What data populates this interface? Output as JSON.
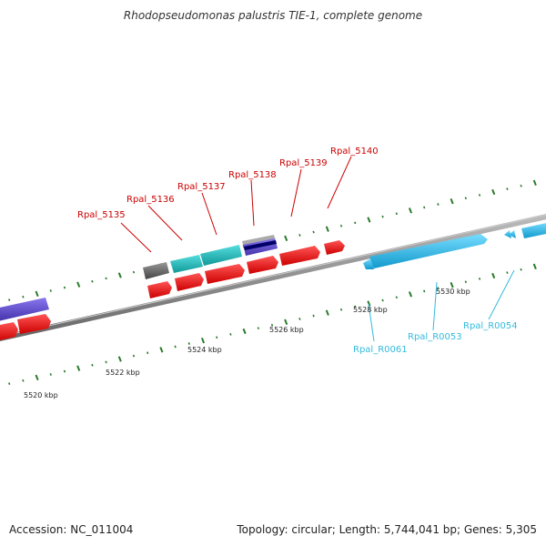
{
  "title": "Rhodopseudomonas palustris TIE-1, complete genome",
  "footer": {
    "accession": "Accession: NC_011004",
    "summary": "Topology: circular; Length: 5,744,041 bp; Genes: 5,305"
  },
  "colors": {
    "gene_label": "#cc0000",
    "rna_label": "#33bbdd",
    "tick": "#2a7a2a",
    "backbone": "#888888",
    "cds_red": "#ee1111",
    "teal": "#22bbbb",
    "purple": "#6655cc",
    "light_blue": "#33bbee",
    "gray": "#666666"
  },
  "scale_labels": [
    "5520 kbp",
    "5522 kbp",
    "5524 kbp",
    "5526 kbp",
    "5528 kbp",
    "5530 kbp"
  ],
  "gene_labels": [
    "Rpal_5135",
    "Rpal_5136",
    "Rpal_5137",
    "Rpal_5138",
    "Rpal_5139",
    "Rpal_5140"
  ],
  "rna_labels": [
    "Rpal_R0061",
    "Rpal_R0053",
    "Rpal_R0054"
  ]
}
